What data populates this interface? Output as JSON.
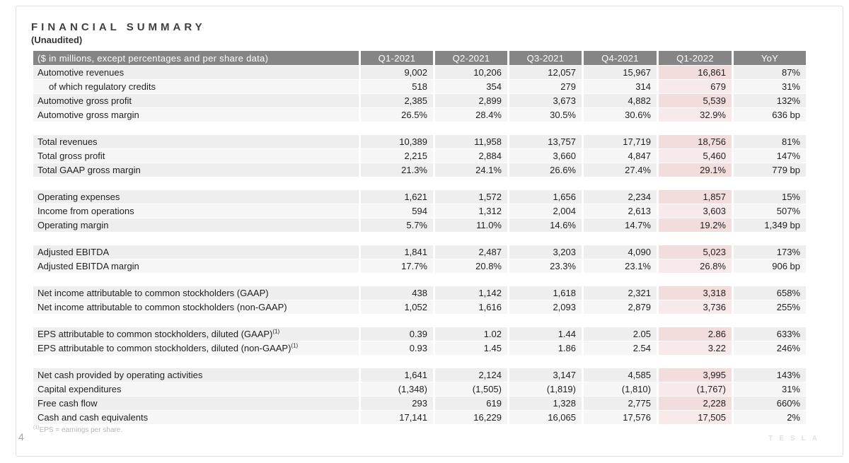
{
  "slide": {
    "title": "FINANCIAL SUMMARY",
    "subtitle": "(Unaudited)",
    "page_number": "4",
    "brand": "TESLA"
  },
  "colors": {
    "header_bg": "#858585",
    "header_text": "#ffffff",
    "row_dark": "#eeeeee",
    "row_light": "#f6f6f6",
    "highlight_dark": "#f2dcdc",
    "highlight_light": "#f8eaea",
    "text": "#1f1f1f",
    "footnote": "#b5b5b5",
    "page_number": "#a3a3a3",
    "brand": "#e1e1e1"
  },
  "table": {
    "header": [
      "($ in millions, except percentages and per share data)",
      "Q1-2021",
      "Q2-2021",
      "Q3-2021",
      "Q4-2021",
      "Q1-2022",
      "YoY"
    ],
    "highlight_column": "Q1-2022",
    "sections": [
      {
        "rows": [
          {
            "label": "Automotive revenues",
            "indent": false,
            "values": [
              "9,002",
              "10,206",
              "12,057",
              "15,967",
              "16,861",
              "87%"
            ]
          },
          {
            "label": "of which regulatory credits",
            "indent": true,
            "values": [
              "518",
              "354",
              "279",
              "314",
              "679",
              "31%"
            ]
          },
          {
            "label": "Automotive gross profit",
            "indent": false,
            "values": [
              "2,385",
              "2,899",
              "3,673",
              "4,882",
              "5,539",
              "132%"
            ]
          },
          {
            "label": "Automotive gross margin",
            "indent": false,
            "values": [
              "26.5%",
              "28.4%",
              "30.5%",
              "30.6%",
              "32.9%",
              "636 bp"
            ]
          }
        ]
      },
      {
        "rows": [
          {
            "label": "Total revenues",
            "indent": false,
            "values": [
              "10,389",
              "11,958",
              "13,757",
              "17,719",
              "18,756",
              "81%"
            ]
          },
          {
            "label": "Total gross profit",
            "indent": false,
            "values": [
              "2,215",
              "2,884",
              "3,660",
              "4,847",
              "5,460",
              "147%"
            ]
          },
          {
            "label": "Total GAAP gross margin",
            "indent": false,
            "values": [
              "21.3%",
              "24.1%",
              "26.6%",
              "27.4%",
              "29.1%",
              "779 bp"
            ]
          }
        ]
      },
      {
        "rows": [
          {
            "label": "Operating expenses",
            "indent": false,
            "values": [
              "1,621",
              "1,572",
              "1,656",
              "2,234",
              "1,857",
              "15%"
            ]
          },
          {
            "label": "Income from operations",
            "indent": false,
            "values": [
              "594",
              "1,312",
              "2,004",
              "2,613",
              "3,603",
              "507%"
            ]
          },
          {
            "label": "Operating margin",
            "indent": false,
            "values": [
              "5.7%",
              "11.0%",
              "14.6%",
              "14.7%",
              "19.2%",
              "1,349 bp"
            ]
          }
        ]
      },
      {
        "rows": [
          {
            "label": "Adjusted EBITDA",
            "indent": false,
            "values": [
              "1,841",
              "2,487",
              "3,203",
              "4,090",
              "5,023",
              "173%"
            ]
          },
          {
            "label": "Adjusted EBITDA margin",
            "indent": false,
            "values": [
              "17.7%",
              "20.8%",
              "23.3%",
              "23.1%",
              "26.8%",
              "906 bp"
            ]
          }
        ]
      },
      {
        "rows": [
          {
            "label": "Net income attributable to common stockholders (GAAP)",
            "indent": false,
            "values": [
              "438",
              "1,142",
              "1,618",
              "2,321",
              "3,318",
              "658%"
            ]
          },
          {
            "label": "Net income attributable to common stockholders (non-GAAP)",
            "indent": false,
            "values": [
              "1,052",
              "1,616",
              "2,093",
              "2,879",
              "3,736",
              "255%"
            ]
          }
        ]
      },
      {
        "rows": [
          {
            "label": "EPS attributable to common stockholders, diluted (GAAP)",
            "sup": "(1)",
            "indent": false,
            "values": [
              "0.39",
              "1.02",
              "1.44",
              "2.05",
              "2.86",
              "633%"
            ]
          },
          {
            "label": "EPS attributable to common stockholders, diluted (non-GAAP)",
            "sup": "(1)",
            "indent": false,
            "values": [
              "0.93",
              "1.45",
              "1.86",
              "2.54",
              "3.22",
              "246%"
            ]
          }
        ]
      },
      {
        "rows": [
          {
            "label": "Net cash provided by operating activities",
            "indent": false,
            "values": [
              "1,641",
              "2,124",
              "3,147",
              "4,585",
              "3,995",
              "143%"
            ]
          },
          {
            "label": "Capital expenditures",
            "indent": false,
            "values": [
              "(1,348)",
              "(1,505)",
              "(1,819)",
              "(1,810)",
              "(1,767)",
              "31%"
            ]
          },
          {
            "label": "Free cash flow",
            "indent": false,
            "values": [
              "293",
              "619",
              "1,328",
              "2,775",
              "2,228",
              "660%"
            ]
          },
          {
            "label": "Cash and cash equivalents",
            "indent": false,
            "values": [
              "17,141",
              "16,229",
              "16,065",
              "17,576",
              "17,505",
              "2%"
            ]
          }
        ]
      }
    ],
    "footnote": {
      "sup": "(1)",
      "text": "EPS = earnings per share."
    }
  }
}
